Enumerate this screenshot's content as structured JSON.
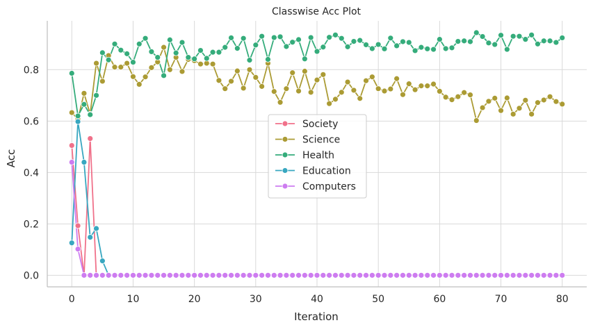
{
  "chart_data": {
    "type": "line",
    "title": "Classwise Acc Plot",
    "xlabel": "Iteration",
    "ylabel": "Acc",
    "xlim": [
      -4,
      84
    ],
    "ylim": [
      -0.045,
      0.99
    ],
    "x_ticks": [
      0,
      10,
      20,
      30,
      40,
      50,
      60,
      70,
      80
    ],
    "y_ticks": [
      0.0,
      0.2,
      0.4,
      0.6,
      0.8
    ],
    "y_tick_labels": [
      "0.0",
      "0.2",
      "0.4",
      "0.6",
      "0.8"
    ],
    "grid": true,
    "legend_position": "center",
    "marker": "circle",
    "series": [
      {
        "name": "Society",
        "color": "#f0718a",
        "x": [
          0,
          1,
          2,
          3,
          4
        ],
        "y": [
          0.505,
          0.193,
          0.0,
          0.532,
          0.0
        ]
      },
      {
        "name": "Science",
        "color": "#ab9b34",
        "x": [
          0,
          1,
          2,
          3,
          4,
          5,
          6,
          7,
          8,
          9,
          10,
          11,
          12,
          13,
          14,
          15,
          16,
          17,
          18,
          19,
          20,
          21,
          22,
          23,
          24,
          25,
          26,
          27,
          28,
          29,
          30,
          31,
          32,
          33,
          34,
          35,
          36,
          37,
          38,
          39,
          40,
          41,
          42,
          43,
          44,
          45,
          46,
          47,
          48,
          49,
          50,
          51,
          52,
          53,
          54,
          55,
          56,
          57,
          58,
          59,
          60,
          61,
          62,
          63,
          64,
          65,
          66,
          67,
          68,
          69,
          70,
          71,
          72,
          73,
          74,
          75,
          76,
          77,
          78,
          79,
          80
        ],
        "y": [
          0.633,
          0.607,
          0.708,
          0.627,
          0.825,
          0.755,
          0.855,
          0.81,
          0.81,
          0.825,
          0.773,
          0.743,
          0.772,
          0.808,
          0.83,
          0.887,
          0.8,
          0.848,
          0.793,
          0.84,
          0.835,
          0.822,
          0.825,
          0.822,
          0.758,
          0.726,
          0.755,
          0.795,
          0.728,
          0.8,
          0.77,
          0.735,
          0.825,
          0.715,
          0.673,
          0.726,
          0.788,
          0.717,
          0.794,
          0.712,
          0.76,
          0.781,
          0.668,
          0.685,
          0.712,
          0.752,
          0.72,
          0.688,
          0.757,
          0.772,
          0.726,
          0.717,
          0.725,
          0.765,
          0.703,
          0.745,
          0.722,
          0.737,
          0.737,
          0.744,
          0.716,
          0.693,
          0.683,
          0.695,
          0.711,
          0.702,
          0.602,
          0.652,
          0.677,
          0.689,
          0.641,
          0.69,
          0.627,
          0.65,
          0.681,
          0.627,
          0.672,
          0.682,
          0.695,
          0.676,
          0.666
        ]
      },
      {
        "name": "Health",
        "color": "#35ac7b",
        "x": [
          0,
          1,
          2,
          3,
          4,
          5,
          6,
          7,
          8,
          9,
          10,
          11,
          12,
          13,
          14,
          15,
          16,
          17,
          18,
          19,
          20,
          21,
          22,
          23,
          24,
          25,
          26,
          27,
          28,
          29,
          30,
          31,
          32,
          33,
          34,
          35,
          36,
          37,
          38,
          39,
          40,
          41,
          42,
          43,
          44,
          45,
          46,
          47,
          48,
          49,
          50,
          51,
          52,
          53,
          54,
          55,
          56,
          57,
          58,
          59,
          60,
          61,
          62,
          63,
          64,
          65,
          66,
          67,
          68,
          69,
          70,
          71,
          72,
          73,
          74,
          75,
          76,
          77,
          78,
          79,
          80
        ],
        "y": [
          0.786,
          0.62,
          0.665,
          0.625,
          0.7,
          0.866,
          0.838,
          0.9,
          0.876,
          0.862,
          0.829,
          0.9,
          0.922,
          0.87,
          0.848,
          0.777,
          0.916,
          0.865,
          0.906,
          0.848,
          0.842,
          0.875,
          0.844,
          0.868,
          0.868,
          0.887,
          0.924,
          0.883,
          0.922,
          0.837,
          0.896,
          0.93,
          0.84,
          0.925,
          0.928,
          0.89,
          0.907,
          0.917,
          0.842,
          0.925,
          0.871,
          0.888,
          0.926,
          0.935,
          0.922,
          0.889,
          0.91,
          0.914,
          0.897,
          0.882,
          0.898,
          0.881,
          0.923,
          0.893,
          0.909,
          0.906,
          0.874,
          0.887,
          0.881,
          0.879,
          0.918,
          0.882,
          0.885,
          0.91,
          0.912,
          0.909,
          0.944,
          0.929,
          0.904,
          0.898,
          0.934,
          0.879,
          0.93,
          0.93,
          0.918,
          0.935,
          0.9,
          0.912,
          0.912,
          0.906,
          0.924
        ]
      },
      {
        "name": "Education",
        "color": "#38a7c0",
        "x": [
          0,
          1,
          2,
          3,
          4,
          5,
          6
        ],
        "y": [
          0.126,
          0.598,
          0.44,
          0.148,
          0.182,
          0.056,
          0.0
        ]
      },
      {
        "name": "Computers",
        "color": "#cd7cf0",
        "x": [
          0,
          1,
          2,
          3,
          4,
          5,
          6,
          7,
          8,
          9,
          10,
          11,
          12,
          13,
          14,
          15,
          16,
          17,
          18,
          19,
          20,
          21,
          22,
          23,
          24,
          25,
          26,
          27,
          28,
          29,
          30,
          31,
          32,
          33,
          34,
          35,
          36,
          37,
          38,
          39,
          40,
          41,
          42,
          43,
          44,
          45,
          46,
          47,
          48,
          49,
          50,
          51,
          52,
          53,
          54,
          55,
          56,
          57,
          58,
          59,
          60,
          61,
          62,
          63,
          64,
          65,
          66,
          67,
          68,
          69,
          70,
          71,
          72,
          73,
          74,
          75,
          76,
          77,
          78,
          79,
          80
        ],
        "y": [
          0.44,
          0.102,
          0,
          0,
          0,
          0,
          0,
          0,
          0,
          0,
          0,
          0,
          0,
          0,
          0,
          0,
          0,
          0,
          0,
          0,
          0,
          0,
          0,
          0,
          0,
          0,
          0,
          0,
          0,
          0,
          0,
          0,
          0,
          0,
          0,
          0,
          0,
          0,
          0,
          0,
          0,
          0,
          0,
          0,
          0,
          0,
          0,
          0,
          0,
          0,
          0,
          0,
          0,
          0,
          0,
          0,
          0,
          0,
          0,
          0,
          0,
          0,
          0,
          0,
          0,
          0,
          0,
          0,
          0,
          0,
          0,
          0,
          0,
          0,
          0,
          0,
          0,
          0,
          0,
          0,
          0
        ]
      }
    ]
  }
}
